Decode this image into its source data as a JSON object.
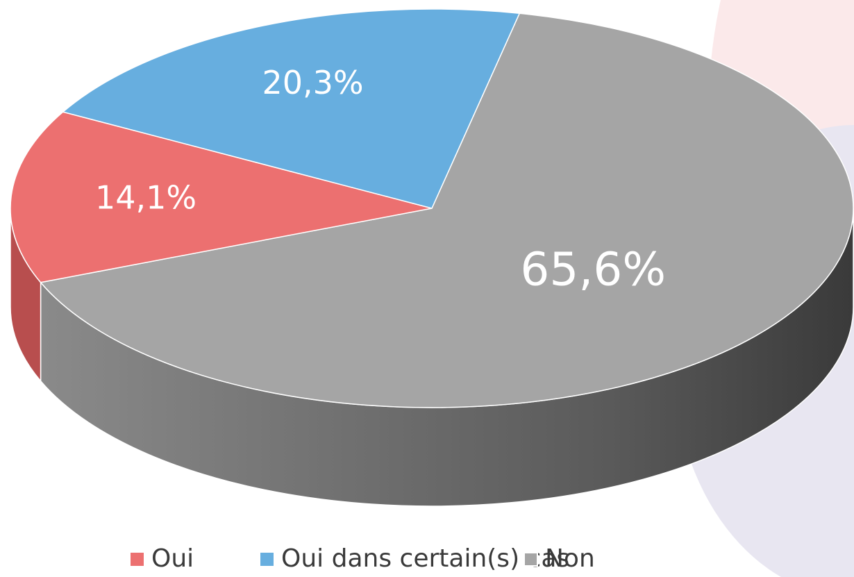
{
  "chart_data": {
    "type": "pie3d",
    "categories": [
      "Oui",
      "Oui dans certain(s) cas",
      "Non"
    ],
    "values": [
      14.1,
      20.3,
      65.6
    ],
    "value_labels": [
      "14,1%",
      "20,3%",
      "65,6%"
    ],
    "colors": [
      "#ec7070",
      "#67aedf",
      "#a5a5a5"
    ],
    "legend": "bottom"
  }
}
